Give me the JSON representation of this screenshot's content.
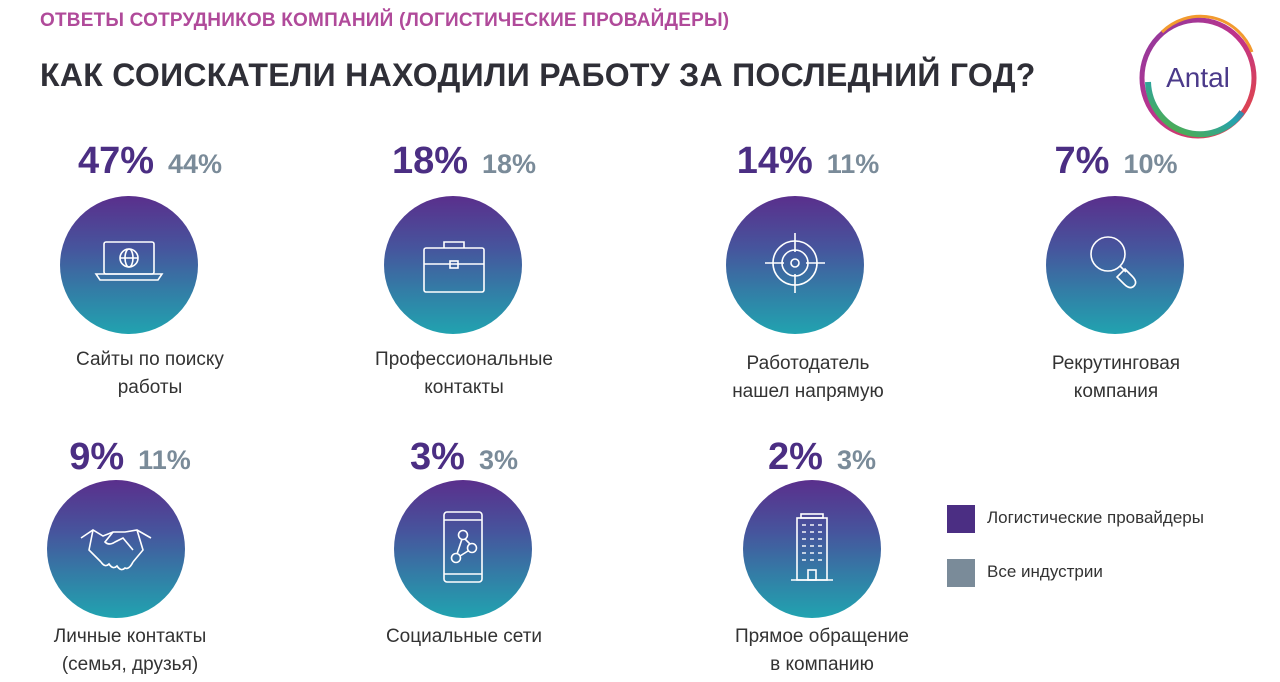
{
  "header": {
    "subtitle": "ОТВЕТЫ СОТРУДНИКОВ КОМПАНИЙ (ЛОГИСТИЧЕСКИЕ ПРОВАЙДЕРЫ)",
    "title": "КАК СОИСКАТЕЛИ НАХОДИЛИ РАБОТУ ЗА ПОСЛЕДНИЙ ГОД?",
    "logo_text": "Antal"
  },
  "colors": {
    "logistics": "#4b2e83",
    "all_industries": "#7a8b99",
    "subtitle": "#b04a9a"
  },
  "chart_data": {
    "type": "table",
    "title": "КАК СОИСКАТЕЛИ НАХОДИЛИ РАБОТУ ЗА ПОСЛЕДНИЙ ГОД?",
    "subtitle": "ОТВЕТЫ СОТРУДНИКОВ КОМПАНИЙ (ЛОГИСТИЧЕСКИЕ ПРОВАЙДЕРЫ)",
    "legend": [
      "Логистические провайдеры",
      "Все индустрии"
    ],
    "items": [
      {
        "label_lines": [
          "Сайты по поиску",
          "работы"
        ],
        "icon": "laptop-globe-icon",
        "logistics": "47%",
        "all_industries": "44%"
      },
      {
        "label_lines": [
          "Профессиональные",
          "контакты"
        ],
        "icon": "briefcase-icon",
        "logistics": "18%",
        "all_industries": "18%"
      },
      {
        "label_lines": [
          "Работодатель",
          "нашел напрямую"
        ],
        "icon": "target-icon",
        "logistics": "14%",
        "all_industries": "11%"
      },
      {
        "label_lines": [
          "Рекрутинговая",
          "компания"
        ],
        "icon": "magnifier-icon",
        "logistics": "7%",
        "all_industries": "10%"
      },
      {
        "label_lines": [
          "Личные контакты",
          "(семья, друзья)"
        ],
        "icon": "handshake-icon",
        "logistics": "9%",
        "all_industries": "11%"
      },
      {
        "label_lines": [
          "Социальные сети"
        ],
        "icon": "smartphone-network-icon",
        "logistics": "3%",
        "all_industries": "3%"
      },
      {
        "label_lines": [
          "Прямое обращение",
          "в компанию"
        ],
        "icon": "office-building-icon",
        "logistics": "2%",
        "all_industries": "3%"
      }
    ],
    "values_logistics": [
      47,
      18,
      14,
      7,
      9,
      3,
      2
    ],
    "values_all_industries": [
      44,
      18,
      11,
      10,
      11,
      3,
      3
    ]
  },
  "legend": {
    "items": [
      {
        "label": "Логистические провайдеры"
      },
      {
        "label": "Все индустрии"
      }
    ]
  }
}
